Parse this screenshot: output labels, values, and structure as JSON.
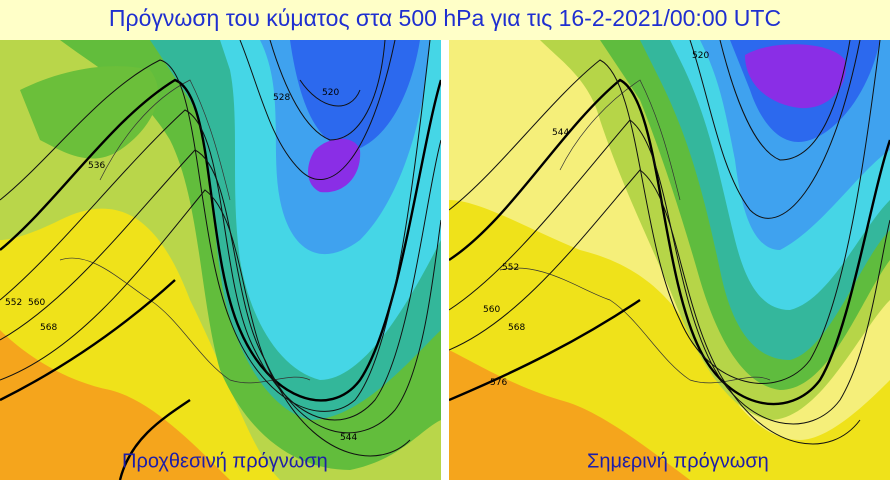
{
  "header": {
    "title": "Πρόγνωση του κύματος στα 500 hPa για τις 16-2-2021/00:00 UTC"
  },
  "panels": [
    {
      "caption": "Προχθεσινή πρόγνωση",
      "contour_labels": [
        "520",
        "528",
        "536",
        "544",
        "552",
        "560",
        "568"
      ]
    },
    {
      "caption": "Σημερινή πρόγνωση",
      "contour_labels": [
        "520",
        "544",
        "552",
        "560",
        "568",
        "576"
      ]
    }
  ]
}
